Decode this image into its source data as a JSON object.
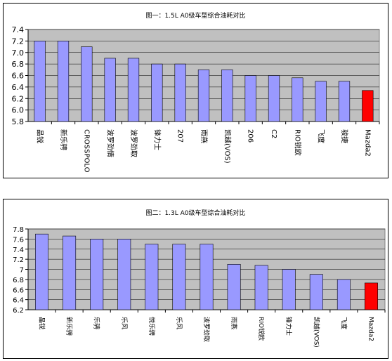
{
  "chart_data": [
    {
      "type": "bar",
      "title": "图一：1.5L A0级车型综合油耗对比",
      "categories": [
        "晶锐",
        "新乐骋",
        "CROSSPOLO",
        "波罗劲情",
        "波罗劲取",
        "锋力士",
        "207",
        "雨燕",
        "凯越(VOS)",
        "206",
        "C2",
        "RIO锐欧",
        "飞度",
        "骏捷",
        "Mazda2"
      ],
      "values": [
        7.2,
        7.2,
        7.1,
        6.9,
        6.9,
        6.8,
        6.8,
        6.7,
        6.7,
        6.6,
        6.6,
        6.56,
        6.5,
        6.5,
        6.34
      ],
      "highlight_index": 14,
      "ylim": [
        5.8,
        7.4
      ],
      "yticks": [
        "5.8",
        "6.0",
        "6.2",
        "6.4",
        "6.6",
        "6.8",
        "7.0",
        "7.2",
        "7.4"
      ],
      "grid": true,
      "colors": {
        "bar": "#9999ff",
        "highlight": "#ff0000",
        "plot_bg": "#c0c0c0"
      }
    },
    {
      "type": "bar",
      "title": "图二：1.3L A0级车型综合油耗对比",
      "categories": [
        "晶锐",
        "新乐骋",
        "乐骋",
        "乐风",
        "悦乐骋",
        "乐风",
        "波罗劲取",
        "雨燕",
        "RIO锐欧",
        "锋力士",
        "凯越(VOS)",
        "飞度",
        "Mazda2"
      ],
      "values": [
        7.7,
        7.66,
        7.6,
        7.6,
        7.5,
        7.5,
        7.5,
        7.1,
        7.08,
        7.0,
        6.9,
        6.8,
        6.73
      ],
      "highlight_index": 12,
      "ylim": [
        6.2,
        7.8
      ],
      "yticks": [
        "6.2",
        "6.4",
        "6.6",
        "6.8",
        "7",
        "7.2",
        "7.4",
        "7.6",
        "7.8"
      ],
      "grid": true,
      "colors": {
        "bar": "#9999ff",
        "highlight": "#ff0000",
        "plot_bg": "#c0c0c0"
      }
    }
  ]
}
